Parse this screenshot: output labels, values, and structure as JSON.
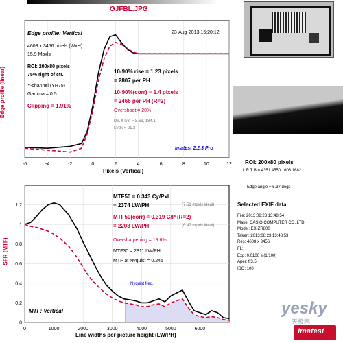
{
  "file_title": "GJFBL.JPG",
  "top_chart": {
    "panel_title": "Edge profile: Vertical",
    "date": "23-Aug-2013 15:20:12",
    "ylabel": "Edge profile (linear)",
    "xlabel": "Pixels (Vertical)",
    "info": [
      "4608 x 3456 pixels (WxH)",
      "15.9 Mpxls",
      "ROI: 200x80 pixels",
      "75% right of ctr.",
      "Y-channel  (YR75)",
      "Gamma = 0.5"
    ],
    "clipping": "Clipping =   1.91%",
    "rise_line1": "10-90% rise = 1.23 pixels",
    "rise_line2": "= 2807 per PH",
    "corr_line1": "10-90%(corr) = 1.4 pixels",
    "corr_line2": "= 2466 per PH     (R=2)",
    "overshoot": "Overshoot = 20%",
    "dk1": "Dk, lt lvls = 8.63, 184.1",
    "dk2": "Lt/dk = 21.3",
    "version": "Imatest 2.2.3 Pro",
    "x_ticks": [
      "-6",
      "-4",
      "-2",
      "0",
      "2",
      "4",
      "6",
      "8",
      "10",
      "12"
    ]
  },
  "bottom_chart": {
    "ylabel": "SFR (MTF)",
    "xlabel": "Line widths per picture height (LW/PH)",
    "panel_label": "MTF: Vertical",
    "mtf50_line1": "MTF50 = 0.343 Cy/Pxl",
    "mtf50_line2": "= 2374 LW/PH",
    "mtf50_ideal": "(7.51 mpxls ideal)",
    "corr_line1": "MTF50(corr) = 0.319 C/P   (R=2)",
    "corr_line2": "= 2203 LW/PH",
    "corr_ideal": "(6.47 mpxls ideal)",
    "oversharp": "Oversharpening = 19.6%",
    "mtf30": "MTF30 = 2811 LW/PH",
    "nyq": "MTF at Nyquist = 0.245",
    "nyq_label": "Nyquist freq.",
    "x_ticks": [
      "0",
      "1000",
      "2000",
      "3000",
      "4000",
      "5000",
      "6000"
    ],
    "y_ticks": [
      "0",
      "0.2",
      "0.4",
      "0.6",
      "0.8",
      "1",
      "1.2"
    ]
  },
  "side": {
    "roi_title": "ROI: 200x80 pixels",
    "lrtb": "L R T B = 4351 4550  1603 1682",
    "edge_angle": "Edge angle = 5.37 degs",
    "exif_title": "Selected EXIF data",
    "exif": [
      "File:     2013:08:23 13:48:54",
      "Make:   CASIO COMPUTER CO.,LTD.",
      "Model:  EX-ZR800",
      "Taken:  2013:08:23 13:48:53",
      "Res:     4608 x 3456",
      "FL:",
      "Exp:     0.0100 s   (1/100)",
      "Aper:   f/3.5",
      "ISO:     100"
    ]
  },
  "watermark": {
    "site": "yesky",
    "sub": "天极网",
    "brand": "Imatest"
  },
  "colors": {
    "black_curve": "#000000",
    "corr_curve": "#cc0033",
    "nyquist_fill": "#dcdcf5",
    "title_color": "#cc0033"
  },
  "chart_data": [
    {
      "type": "line",
      "title": "Edge profile: Vertical",
      "xlabel": "Pixels (Vertical)",
      "ylabel": "Edge profile (linear)",
      "xlim": [
        -6,
        12
      ],
      "series": [
        {
          "x": [
            -6,
            -4,
            -2,
            -1,
            -0.5,
            0,
            0.5,
            1,
            1.5,
            2,
            2.5,
            3,
            3.5,
            4,
            5,
            6,
            8,
            10,
            12
          ],
          "y": [
            0.01,
            0.0,
            0.02,
            0.05,
            0.18,
            0.45,
            0.8,
            1.05,
            1.18,
            1.2,
            1.12,
            1.05,
            1.01,
            1.0,
            1.0,
            1.0,
            1.0,
            1.0,
            1.0
          ]
        },
        {
          "x": [
            -6,
            -4,
            -2,
            -1,
            -0.5,
            0,
            0.5,
            1,
            1.5,
            2,
            2.5,
            3,
            3.5,
            4,
            5,
            6,
            8,
            10,
            12
          ],
          "y": [
            0.0,
            -0.02,
            -0.04,
            0.0,
            0.15,
            0.4,
            0.72,
            0.95,
            1.08,
            1.12,
            1.1,
            1.06,
            1.02,
            1.0,
            1.0,
            1.0,
            1.0,
            1.0,
            1.0
          ]
        }
      ]
    },
    {
      "type": "line",
      "xlabel": "Line widths per picture height (LW/PH)",
      "ylabel": "SFR (MTF)",
      "xlim": [
        0,
        7000
      ],
      "ylim": [
        0,
        1.4
      ],
      "nyquist": 3456,
      "series": [
        {
          "x": [
            0,
            200,
            400,
            600,
            800,
            1000,
            1200,
            1500,
            1800,
            2000,
            2200,
            2400,
            2600,
            2800,
            3000,
            3200,
            3400,
            3600,
            3800,
            4000,
            4200,
            4400,
            4600,
            4800,
            5000,
            5200,
            5400,
            5600,
            5800,
            6000,
            6200,
            6400,
            6600,
            6800,
            7000
          ],
          "y": [
            1.0,
            1.02,
            1.08,
            1.15,
            1.2,
            1.22,
            1.2,
            1.1,
            0.95,
            0.82,
            0.7,
            0.58,
            0.47,
            0.38,
            0.32,
            0.27,
            0.24,
            0.23,
            0.22,
            0.2,
            0.2,
            0.22,
            0.24,
            0.21,
            0.27,
            0.3,
            0.33,
            0.22,
            0.12,
            0.1,
            0.08,
            0.12,
            0.1,
            0.05,
            0.04
          ]
        },
        {
          "x": [
            0,
            200,
            400,
            600,
            800,
            1000,
            1200,
            1500,
            1800,
            2000,
            2200,
            2400,
            2600,
            2800,
            3000,
            3200,
            3400,
            3600,
            3800,
            4000,
            4200,
            4400,
            4600,
            4800,
            5000,
            5200,
            5400,
            5600,
            5800,
            6000,
            6200,
            6400,
            6600,
            6800,
            7000
          ],
          "y": [
            1.0,
            0.98,
            0.97,
            0.95,
            0.93,
            0.9,
            0.86,
            0.78,
            0.66,
            0.56,
            0.47,
            0.4,
            0.34,
            0.29,
            0.25,
            0.22,
            0.2,
            0.19,
            0.18,
            0.16,
            0.16,
            0.18,
            0.19,
            0.16,
            0.2,
            0.22,
            0.24,
            0.15,
            0.08,
            0.06,
            0.05,
            0.06,
            0.05,
            0.03,
            0.02
          ]
        }
      ]
    }
  ]
}
